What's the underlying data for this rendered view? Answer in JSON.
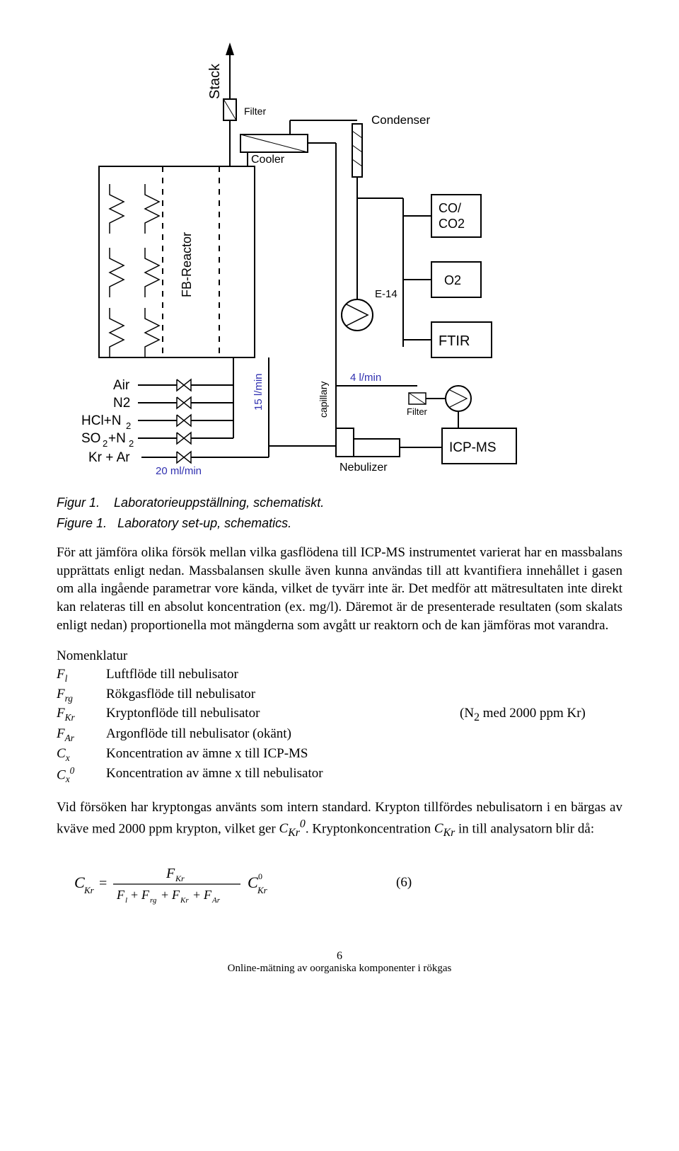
{
  "diagram": {
    "stroke": "#000000",
    "bg": "#ffffff",
    "font": "Arial, Helvetica, sans-serif",
    "labels": {
      "stack": "Stack",
      "filter_top": "Filter",
      "condenser": "Condenser",
      "cooler": "Cooler",
      "fb_reactor": "FB-Reactor",
      "co_co2": "CO/\nCO2",
      "o2": "O2",
      "ftir": "FTIR",
      "e14": "E-14",
      "icp_ms": "ICP-MS",
      "air": "Air",
      "n2": "N2",
      "hcl_n2": "HCl+N",
      "hcl_n2_sub": "2",
      "so2_n2": "SO",
      "so2_n2_sub": "2",
      "so2_n2_rest": "+N",
      "so2_n2_sub2": "2",
      "kr_ar": "Kr + Ar",
      "ml20": "20 ml/min",
      "l15": "15 l/min",
      "capillary": "capillary",
      "l4": "4 l/min",
      "filter_small": "Filter",
      "nebulizer": "Nebulizer"
    }
  },
  "captions": {
    "fig1_sv_label": "Figur 1.",
    "fig1_sv_text": "Laboratorieuppställning, schematiskt.",
    "fig1_en_label": "Figure 1.",
    "fig1_en_text": "Laboratory set-up, schematics."
  },
  "para1": "För att jämföra olika försök mellan vilka gasflödena till ICP-MS instrumentet varierat har en massbalans upprättats enligt nedan. Massbalansen skulle även kunna användas till att kvantifiera innehållet i gasen om alla ingående parametrar vore kända, vilket de tyvärr inte är. Det medför att mätresultaten inte direkt kan relateras till en absolut koncentration (ex. mg/l). Däremot är de presenterade resultaten (som skalats enligt nedan) proportionella mot mängderna som avgått ur reaktorn och de kan jämföras mot varandra.",
  "nomen": {
    "title": "Nomenklatur",
    "rows": [
      {
        "sym_html": "F<sub>l</sub>",
        "desc": "Luftflöde till nebulisator",
        "extra": ""
      },
      {
        "sym_html": "F<sub>rg</sub>",
        "desc": "Rökgasflöde till nebulisator",
        "extra": ""
      },
      {
        "sym_html": "F<sub>Kr</sub>",
        "desc": "Kryptonflöde till nebulisator",
        "extra": "(N<sub>2</sub> med 2000 ppm Kr)"
      },
      {
        "sym_html": "F<sub>Ar</sub>",
        "desc": "Argonflöde till nebulisator   (okänt)",
        "extra": ""
      },
      {
        "sym_html": "C<sub>x</sub>",
        "desc": "Koncentration av ämne x till ICP-MS",
        "extra": ""
      },
      {
        "sym_html": "C<sub>x</sub><sup>0</sup>",
        "desc": "Koncentration av ämne x till nebulisator",
        "extra": ""
      }
    ]
  },
  "para2": "Vid försöken har kryptongas använts som intern standard. Krypton tillfördes nebulisatorn i en bärgas av kväve med 2000 ppm krypton, vilket ger <i>C<sub>Kr</sub><sup>0</sup></i>. Kryptonkoncentration <i>C<sub>Kr</sub></i> in till analysatorn blir då:",
  "equation": {
    "lhs": "C",
    "lhs_sub": "Kr",
    "num": "F",
    "num_sub": "Kr",
    "den_parts": [
      "F",
      "l",
      " + F",
      "rg",
      " + F",
      "Kr",
      " + F",
      "Ar"
    ],
    "rhs": "C",
    "rhs_sub": "Kr",
    "rhs_sup": "0",
    "number": "(6)"
  },
  "footer": {
    "page": "6",
    "line2": "Online-mätning av oorganiska komponenter i rökgas"
  }
}
